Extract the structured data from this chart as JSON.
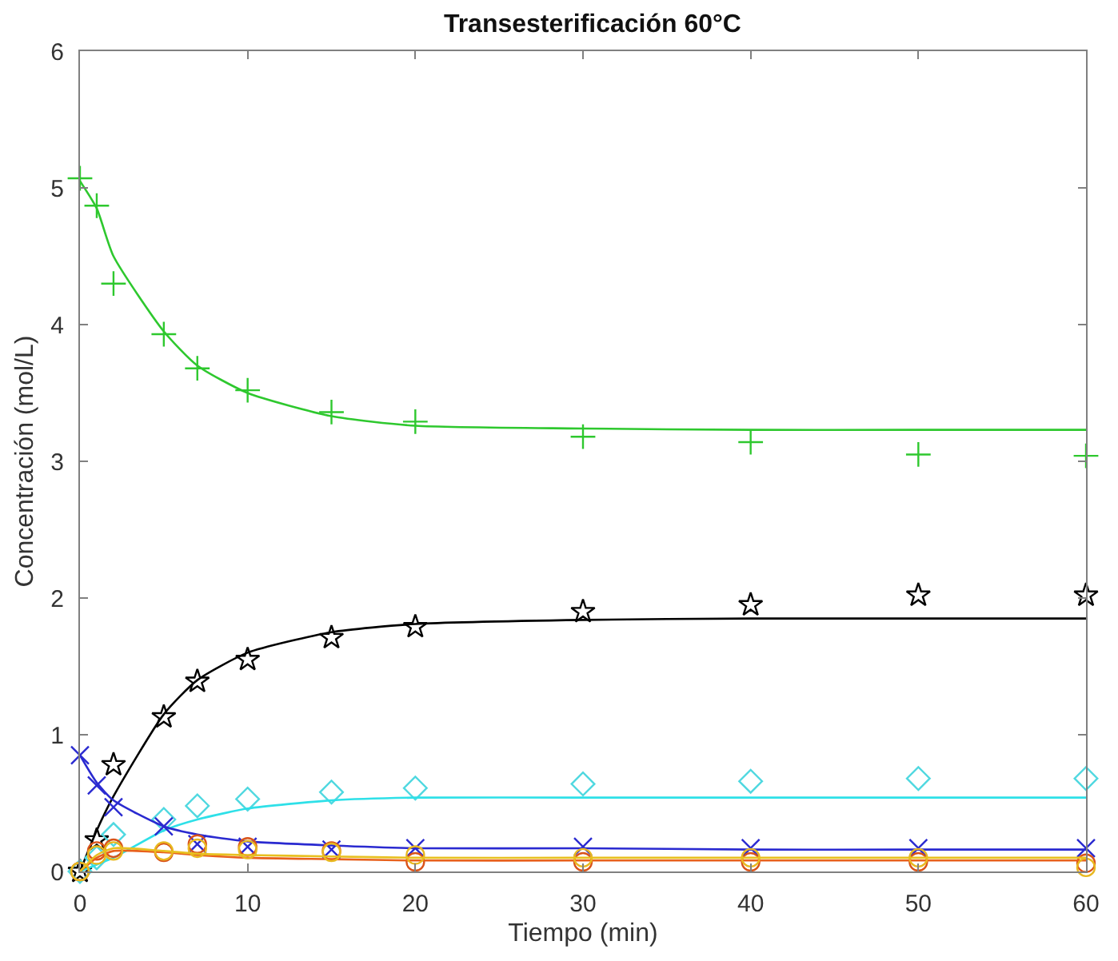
{
  "chart_data": {
    "type": "scatter",
    "title": "Transesterificación 60°C",
    "xlabel": "Tiempo (min)",
    "ylabel": "Concentración (mol/L)",
    "xlim": [
      0,
      60
    ],
    "xticks": [
      0,
      10,
      20,
      30,
      40,
      50,
      60
    ],
    "ylim": [
      0,
      6
    ],
    "yticks": [
      0,
      1,
      2,
      3,
      4,
      5,
      6
    ],
    "grid": false,
    "x": [
      0,
      1,
      2,
      5,
      7,
      10,
      15,
      20,
      30,
      40,
      50,
      60
    ],
    "series": [
      {
        "marker": "cross",
        "color": "#2ec82e",
        "values": [
          5.07,
          4.87,
          4.3,
          3.93,
          3.68,
          3.52,
          3.36,
          3.29,
          3.18,
          3.14,
          3.05,
          3.04
        ]
      },
      {
        "type": "line",
        "marker": "none",
        "color": "#2ec82e",
        "values": [
          5.05,
          4.85,
          4.5,
          3.95,
          3.7,
          3.5,
          3.33,
          3.26,
          3.24,
          3.23,
          3.23,
          3.23
        ]
      },
      {
        "marker": "star",
        "color": "#000000",
        "values": [
          0,
          0.23,
          0.78,
          1.13,
          1.39,
          1.55,
          1.71,
          1.79,
          1.9,
          1.95,
          2.02,
          2.02
        ]
      },
      {
        "type": "line",
        "marker": "none",
        "color": "#000000",
        "values": [
          0,
          0.3,
          0.55,
          1.15,
          1.4,
          1.6,
          1.75,
          1.81,
          1.84,
          1.85,
          1.85,
          1.85
        ]
      },
      {
        "marker": "diamond",
        "color": "#4fd8e0",
        "values": [
          0,
          0.1,
          0.27,
          0.38,
          0.48,
          0.53,
          0.58,
          0.61,
          0.64,
          0.66,
          0.68,
          0.68
        ]
      },
      {
        "type": "line",
        "marker": "none",
        "color": "#2ee0e8",
        "values": [
          0,
          0.05,
          0.1,
          0.3,
          0.38,
          0.46,
          0.52,
          0.54,
          0.54,
          0.54,
          0.54,
          0.54
        ]
      },
      {
        "marker": "x",
        "color": "#2a2ad0",
        "values": [
          0.85,
          0.63,
          0.47,
          0.33,
          0.2,
          0.18,
          0.16,
          0.17,
          0.18,
          0.17,
          0.17,
          0.17
        ]
      },
      {
        "type": "line",
        "marker": "none",
        "color": "#2a2ad0",
        "values": [
          0.85,
          0.65,
          0.52,
          0.33,
          0.27,
          0.22,
          0.19,
          0.17,
          0.17,
          0.16,
          0.16,
          0.16
        ]
      },
      {
        "marker": "circle",
        "color": "#d95319",
        "values": [
          0,
          0.15,
          0.17,
          0.14,
          0.2,
          0.18,
          0.15,
          0.07,
          0.07,
          0.07,
          0.07,
          0.06
        ]
      },
      {
        "type": "line",
        "marker": "none",
        "color": "#e8601c",
        "values": [
          0,
          0.1,
          0.15,
          0.14,
          0.12,
          0.1,
          0.09,
          0.08,
          0.08,
          0.08,
          0.08,
          0.08
        ]
      },
      {
        "marker": "circle",
        "color": "#e8b820",
        "values": [
          0,
          0.12,
          0.15,
          0.15,
          0.17,
          0.16,
          0.14,
          0.12,
          0.1,
          0.1,
          0.1,
          0.03
        ]
      },
      {
        "type": "line",
        "marker": "none",
        "color": "#e8c020",
        "values": [
          0,
          0.12,
          0.17,
          0.15,
          0.13,
          0.12,
          0.11,
          0.1,
          0.1,
          0.1,
          0.1,
          0.1
        ]
      }
    ]
  }
}
